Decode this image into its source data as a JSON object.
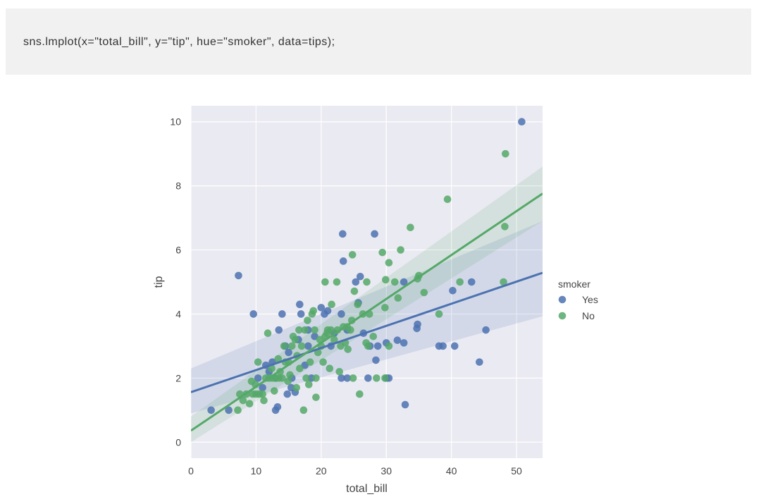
{
  "code_cell": {
    "source": "sns.lmplot(x=\"total_bill\", y=\"tip\", hue=\"smoker\", data=tips);"
  },
  "chart_data": {
    "type": "scatter",
    "xlabel": "total_bill",
    "ylabel": "tip",
    "xlim": [
      0,
      54
    ],
    "ylim": [
      -0.5,
      10.5
    ],
    "xticks": [
      0,
      10,
      20,
      30,
      40,
      50
    ],
    "yticks": [
      0,
      2,
      4,
      6,
      8,
      10
    ],
    "grid": true,
    "background": "#eaeaf2",
    "legend": {
      "title": "smoker",
      "placement": "right-outside"
    },
    "series": [
      {
        "name": "Yes",
        "color": "#4c72b0",
        "regression": {
          "intercept": 1.56,
          "slope": 0.069
        },
        "ci_band": {
          "x": [
            0,
            54
          ],
          "lower": [
            0.9,
            3.93
          ],
          "upper": [
            2.3,
            6.9
          ]
        },
        "points": [
          [
            50.8,
            10.0
          ],
          [
            7.3,
            5.2
          ],
          [
            9.6,
            4.0
          ],
          [
            14.0,
            4.0
          ],
          [
            16.9,
            4.0
          ],
          [
            16.7,
            4.3
          ],
          [
            23.3,
            6.5
          ],
          [
            28.2,
            6.5
          ],
          [
            23.4,
            5.65
          ],
          [
            26.0,
            5.17
          ],
          [
            25.3,
            5.0
          ],
          [
            25.7,
            4.35
          ],
          [
            20.0,
            4.2
          ],
          [
            20.5,
            4.0
          ],
          [
            21.0,
            4.1
          ],
          [
            23.1,
            4.0
          ],
          [
            16.5,
            3.2
          ],
          [
            18.0,
            3.5
          ],
          [
            19.0,
            3.3
          ],
          [
            22.0,
            3.4
          ],
          [
            24.0,
            3.5
          ],
          [
            26.5,
            3.4
          ],
          [
            27.5,
            3.0
          ],
          [
            28.7,
            3.0
          ],
          [
            30.0,
            3.1
          ],
          [
            31.7,
            3.18
          ],
          [
            32.7,
            3.1
          ],
          [
            34.8,
            3.68
          ],
          [
            34.7,
            3.55
          ],
          [
            32.7,
            5.0
          ],
          [
            38.1,
            3.0
          ],
          [
            38.7,
            3.0
          ],
          [
            40.5,
            3.0
          ],
          [
            40.2,
            4.73
          ],
          [
            43.1,
            5.0
          ],
          [
            45.3,
            3.5
          ],
          [
            44.3,
            2.5
          ],
          [
            32.9,
            1.17
          ],
          [
            28.4,
            2.56
          ],
          [
            30.0,
            2.0
          ],
          [
            30.4,
            2.0
          ],
          [
            27.2,
            2.0
          ],
          [
            24.0,
            2.0
          ],
          [
            23.1,
            2.0
          ],
          [
            18.5,
            2.0
          ],
          [
            13.0,
            1.0
          ],
          [
            13.3,
            1.1
          ],
          [
            5.8,
            1.0
          ],
          [
            3.1,
            1.0
          ],
          [
            10.3,
            2.0
          ],
          [
            11.0,
            1.7
          ],
          [
            12.0,
            2.2
          ],
          [
            13.5,
            3.5
          ],
          [
            14.5,
            3.0
          ],
          [
            15.0,
            2.8
          ],
          [
            15.5,
            2.0
          ],
          [
            16.0,
            1.56
          ],
          [
            17.5,
            2.4
          ],
          [
            18.0,
            3.0
          ],
          [
            12.5,
            2.5
          ],
          [
            11.5,
            2.4
          ],
          [
            21.5,
            3.0
          ],
          [
            13.0,
            2.0
          ],
          [
            14.8,
            1.5
          ],
          [
            15.4,
            1.7
          ]
        ]
      },
      {
        "name": "No",
        "color": "#55a868",
        "regression": {
          "intercept": 0.36,
          "slope": 0.137
        },
        "ci_band": {
          "x": [
            0,
            54
          ],
          "lower": [
            0.0,
            6.9
          ],
          "upper": [
            0.8,
            8.6
          ]
        },
        "points": [
          [
            48.3,
            9.0
          ],
          [
            39.4,
            7.58
          ],
          [
            48.2,
            6.73
          ],
          [
            33.7,
            6.7
          ],
          [
            32.2,
            6.0
          ],
          [
            29.4,
            5.92
          ],
          [
            24.8,
            5.85
          ],
          [
            30.4,
            5.6
          ],
          [
            35.0,
            5.2
          ],
          [
            29.9,
            5.07
          ],
          [
            34.8,
            5.1
          ],
          [
            48.0,
            5.0
          ],
          [
            41.3,
            5.0
          ],
          [
            35.8,
            4.67
          ],
          [
            31.8,
            4.5
          ],
          [
            38.1,
            4.0
          ],
          [
            27.0,
            5.0
          ],
          [
            25.6,
            4.3
          ],
          [
            25.1,
            4.71
          ],
          [
            22.4,
            5.0
          ],
          [
            20.6,
            5.0
          ],
          [
            29.8,
            4.2
          ],
          [
            26.4,
            4.0
          ],
          [
            24.0,
            3.6
          ],
          [
            24.5,
            3.5
          ],
          [
            24.7,
            3.8
          ],
          [
            21.0,
            3.5
          ],
          [
            22.0,
            3.2
          ],
          [
            21.5,
            3.5
          ],
          [
            22.5,
            3.5
          ],
          [
            23.0,
            3.0
          ],
          [
            20.0,
            3.0
          ],
          [
            19.5,
            2.8
          ],
          [
            20.6,
            3.3
          ],
          [
            19.0,
            3.5
          ],
          [
            18.6,
            4.0
          ],
          [
            17.5,
            3.5
          ],
          [
            17.0,
            3.0
          ],
          [
            16.6,
            3.5
          ],
          [
            16.0,
            3.2
          ],
          [
            15.5,
            3.0
          ],
          [
            15.0,
            2.5
          ],
          [
            14.5,
            2.5
          ],
          [
            14.0,
            2.0
          ],
          [
            13.5,
            2.0
          ],
          [
            13.0,
            2.0
          ],
          [
            12.5,
            2.0
          ],
          [
            12.0,
            2.0
          ],
          [
            11.5,
            2.0
          ],
          [
            11.0,
            1.5
          ],
          [
            10.5,
            1.5
          ],
          [
            10.0,
            1.5
          ],
          [
            9.5,
            1.5
          ],
          [
            9.0,
            1.2
          ],
          [
            8.5,
            1.5
          ],
          [
            8.0,
            1.3
          ],
          [
            7.5,
            1.5
          ],
          [
            7.2,
            1.0
          ],
          [
            9.9,
            1.8
          ],
          [
            10.3,
            2.5
          ],
          [
            11.8,
            3.4
          ],
          [
            12.4,
            2.3
          ],
          [
            13.4,
            2.6
          ],
          [
            14.3,
            3.0
          ],
          [
            15.7,
            3.3
          ],
          [
            16.3,
            2.7
          ],
          [
            17.9,
            3.8
          ],
          [
            18.3,
            2.5
          ],
          [
            19.2,
            2.0
          ],
          [
            20.3,
            2.5
          ],
          [
            21.3,
            2.3
          ],
          [
            22.8,
            2.2
          ],
          [
            23.7,
            3.1
          ],
          [
            24.9,
            2.0
          ],
          [
            25.9,
            1.5
          ],
          [
            27.2,
            3.0
          ],
          [
            28.5,
            2.0
          ],
          [
            29.8,
            2.0
          ],
          [
            17.3,
            1.0
          ],
          [
            19.2,
            1.4
          ],
          [
            18.1,
            1.8
          ],
          [
            12.8,
            1.6
          ],
          [
            11.2,
            1.3
          ],
          [
            9.3,
            1.9
          ],
          [
            14.9,
            1.9
          ],
          [
            16.7,
            2.3
          ],
          [
            15.2,
            2.1
          ],
          [
            13.7,
            2.2
          ],
          [
            19.8,
            3.2
          ],
          [
            20.9,
            3.4
          ],
          [
            23.4,
            3.6
          ],
          [
            24.1,
            2.9
          ],
          [
            26.9,
            3.1
          ],
          [
            28.0,
            3.3
          ],
          [
            30.4,
            3.0
          ],
          [
            31.3,
            5.0
          ],
          [
            27.4,
            4.0
          ],
          [
            18.8,
            4.1
          ],
          [
            21.6,
            4.3
          ],
          [
            17.7,
            2.0
          ],
          [
            16.2,
            1.7
          ]
        ]
      }
    ]
  }
}
